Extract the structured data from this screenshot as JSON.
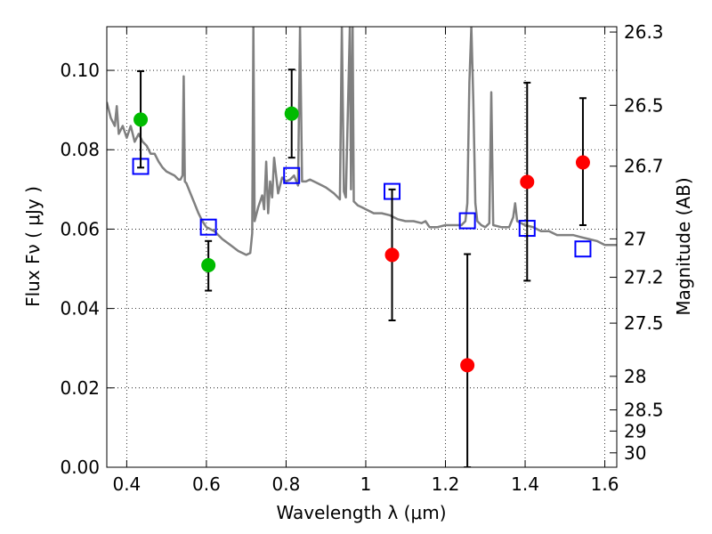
{
  "chart_data": {
    "type": "scatter",
    "title": "",
    "xlabel": "Wavelength  λ (μm)",
    "ylabel": "Flux  Fν  ( μJy )",
    "ylabel_right": "Magnitude (AB)",
    "xlim": [
      0.35,
      1.63
    ],
    "ylim": [
      0.0,
      0.111
    ],
    "grid": true,
    "x_ticks": [
      0.4,
      0.6,
      0.8,
      1.0,
      1.2,
      1.4,
      1.6
    ],
    "x_tick_labels": [
      "0.4",
      "0.6",
      "0.8",
      "1",
      "1.2",
      "1.4",
      "1.6"
    ],
    "y_ticks": [
      0.0,
      0.02,
      0.04,
      0.06,
      0.08,
      0.1
    ],
    "y_tick_labels": [
      "0.00",
      "0.02",
      "0.04",
      "0.06",
      "0.08",
      "0.10"
    ],
    "right_ticks": [
      {
        "label": "26.3",
        "mag": 26.3
      },
      {
        "label": "26.5",
        "mag": 26.5
      },
      {
        "label": "26.7",
        "mag": 26.7
      },
      {
        "label": "27",
        "mag": 27.0
      },
      {
        "label": "27.2",
        "mag": 27.2
      },
      {
        "label": "27.5",
        "mag": 27.5
      },
      {
        "label": "28",
        "mag": 28.0
      },
      {
        "label": "28.5",
        "mag": 28.5
      },
      {
        "label": "29",
        "mag": 29.0
      },
      {
        "label": "30",
        "mag": 30.0
      }
    ],
    "series": [
      {
        "kind": "line",
        "color": "#808080",
        "points": [
          [
            0.35,
            0.092
          ],
          [
            0.36,
            0.088
          ],
          [
            0.37,
            0.086
          ],
          [
            0.375,
            0.091
          ],
          [
            0.38,
            0.084
          ],
          [
            0.39,
            0.086
          ],
          [
            0.4,
            0.083
          ],
          [
            0.41,
            0.086
          ],
          [
            0.42,
            0.082
          ],
          [
            0.43,
            0.084
          ],
          [
            0.44,
            0.082
          ],
          [
            0.45,
            0.081
          ],
          [
            0.46,
            0.079
          ],
          [
            0.47,
            0.079
          ],
          [
            0.48,
            0.077
          ],
          [
            0.49,
            0.0755
          ],
          [
            0.5,
            0.0745
          ],
          [
            0.51,
            0.074
          ],
          [
            0.52,
            0.0735
          ],
          [
            0.53,
            0.0725
          ],
          [
            0.535,
            0.0725
          ],
          [
            0.54,
            0.0735
          ],
          [
            0.543,
            0.0985
          ],
          [
            0.546,
            0.072
          ],
          [
            0.55,
            0.0715
          ],
          [
            0.56,
            0.069
          ],
          [
            0.57,
            0.0665
          ],
          [
            0.58,
            0.064
          ],
          [
            0.59,
            0.062
          ],
          [
            0.6,
            0.0605
          ],
          [
            0.62,
            0.0595
          ],
          [
            0.64,
            0.0575
          ],
          [
            0.66,
            0.056
          ],
          [
            0.68,
            0.0545
          ],
          [
            0.7,
            0.0535
          ],
          [
            0.71,
            0.054
          ],
          [
            0.715,
            0.059
          ],
          [
            0.718,
            0.111
          ],
          [
            0.721,
            0.062
          ],
          [
            0.73,
            0.0655
          ],
          [
            0.74,
            0.0685
          ],
          [
            0.745,
            0.065
          ],
          [
            0.75,
            0.077
          ],
          [
            0.755,
            0.064
          ],
          [
            0.76,
            0.072
          ],
          [
            0.765,
            0.068
          ],
          [
            0.77,
            0.078
          ],
          [
            0.78,
            0.069
          ],
          [
            0.79,
            0.073
          ],
          [
            0.8,
            0.072
          ],
          [
            0.81,
            0.0725
          ],
          [
            0.82,
            0.0735
          ],
          [
            0.83,
            0.071
          ],
          [
            0.835,
            0.111
          ],
          [
            0.84,
            0.072
          ],
          [
            0.85,
            0.072
          ],
          [
            0.86,
            0.0725
          ],
          [
            0.88,
            0.0715
          ],
          [
            0.9,
            0.0705
          ],
          [
            0.92,
            0.069
          ],
          [
            0.935,
            0.0675
          ],
          [
            0.94,
            0.111
          ],
          [
            0.945,
            0.0695
          ],
          [
            0.95,
            0.068
          ],
          [
            0.96,
            0.111
          ],
          [
            0.963,
            0.07
          ],
          [
            0.967,
            0.111
          ],
          [
            0.97,
            0.067
          ],
          [
            0.98,
            0.066
          ],
          [
            0.99,
            0.0655
          ],
          [
            1.0,
            0.065
          ],
          [
            1.02,
            0.064
          ],
          [
            1.04,
            0.064
          ],
          [
            1.06,
            0.0635
          ],
          [
            1.08,
            0.0625
          ],
          [
            1.1,
            0.062
          ],
          [
            1.12,
            0.062
          ],
          [
            1.14,
            0.0615
          ],
          [
            1.15,
            0.062
          ],
          [
            1.16,
            0.0605
          ],
          [
            1.18,
            0.0605
          ],
          [
            1.2,
            0.061
          ],
          [
            1.22,
            0.061
          ],
          [
            1.24,
            0.061
          ],
          [
            1.25,
            0.062
          ],
          [
            1.255,
            0.0665
          ],
          [
            1.26,
            0.097
          ],
          [
            1.265,
            0.111
          ],
          [
            1.27,
            0.0925
          ],
          [
            1.275,
            0.0665
          ],
          [
            1.28,
            0.062
          ],
          [
            1.29,
            0.061
          ],
          [
            1.3,
            0.0605
          ],
          [
            1.31,
            0.0615
          ],
          [
            1.315,
            0.0945
          ],
          [
            1.32,
            0.061
          ],
          [
            1.34,
            0.0605
          ],
          [
            1.36,
            0.0605
          ],
          [
            1.37,
            0.063
          ],
          [
            1.375,
            0.0665
          ],
          [
            1.38,
            0.062
          ],
          [
            1.4,
            0.061
          ],
          [
            1.42,
            0.0605
          ],
          [
            1.44,
            0.0595
          ],
          [
            1.46,
            0.0595
          ],
          [
            1.48,
            0.0585
          ],
          [
            1.5,
            0.0585
          ],
          [
            1.52,
            0.0585
          ],
          [
            1.54,
            0.058
          ],
          [
            1.56,
            0.0575
          ],
          [
            1.58,
            0.057
          ],
          [
            1.6,
            0.056
          ],
          [
            1.63,
            0.056
          ]
        ]
      },
      {
        "kind": "scatter",
        "marker": "open-square",
        "color": "#0000ff",
        "points": [
          [
            0.435,
            0.0758
          ],
          [
            0.605,
            0.0605
          ],
          [
            0.814,
            0.0735
          ],
          [
            1.066,
            0.0695
          ],
          [
            1.255,
            0.0621
          ],
          [
            1.405,
            0.0602
          ],
          [
            1.545,
            0.055
          ]
        ]
      },
      {
        "kind": "errorbar",
        "marker": "filled-circle",
        "color": "#00bb00",
        "points": [
          {
            "x": 0.435,
            "y": 0.0876,
            "lo": 0.0755,
            "hi": 0.0998
          },
          {
            "x": 0.605,
            "y": 0.0509,
            "lo": 0.0445,
            "hi": 0.057
          },
          {
            "x": 0.814,
            "y": 0.0891,
            "lo": 0.078,
            "hi": 0.1002
          }
        ]
      },
      {
        "kind": "errorbar",
        "marker": "filled-circle",
        "color": "#ff0000",
        "points": [
          {
            "x": 1.066,
            "y": 0.0535,
            "lo": 0.037,
            "hi": 0.07
          },
          {
            "x": 1.255,
            "y": 0.0257,
            "lo": 0.0,
            "hi": 0.0537
          },
          {
            "x": 1.405,
            "y": 0.0719,
            "lo": 0.047,
            "hi": 0.0969
          },
          {
            "x": 1.545,
            "y": 0.0768,
            "lo": 0.061,
            "hi": 0.093
          }
        ]
      }
    ]
  }
}
